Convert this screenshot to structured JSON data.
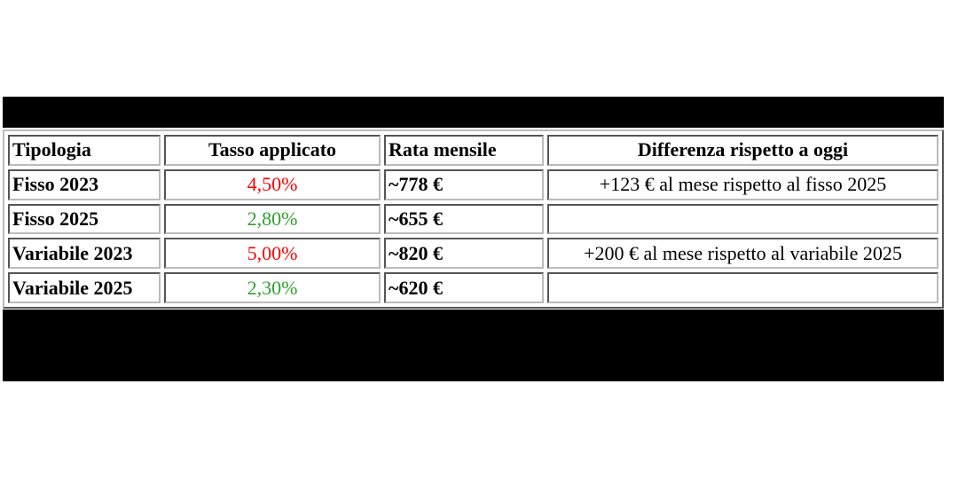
{
  "colors": {
    "increase": "#ff0000",
    "decrease": "#2ea02e",
    "band": "#000000"
  },
  "table": {
    "headers": [
      "Tipologia",
      "Tasso applicato",
      "Rata mensile",
      "Differenza rispetto a oggi"
    ],
    "rows": [
      {
        "tipologia": "Fisso 2023",
        "tasso": "4,50%",
        "tasso_color": "red",
        "rata": "~778 €",
        "differenza": "+123 € al mese rispetto al fisso 2025"
      },
      {
        "tipologia": "Fisso 2025",
        "tasso": "2,80%",
        "tasso_color": "green",
        "rata": "~655 €",
        "differenza": ""
      },
      {
        "tipologia": "Variabile 2023",
        "tasso": "5,00%",
        "tasso_color": "red",
        "rata": "~820 €",
        "differenza": "+200 € al mese rispetto al variabile 2025"
      },
      {
        "tipologia": "Variabile 2025",
        "tasso": "2,30%",
        "tasso_color": "green",
        "rata": "~620 €",
        "differenza": ""
      }
    ]
  }
}
